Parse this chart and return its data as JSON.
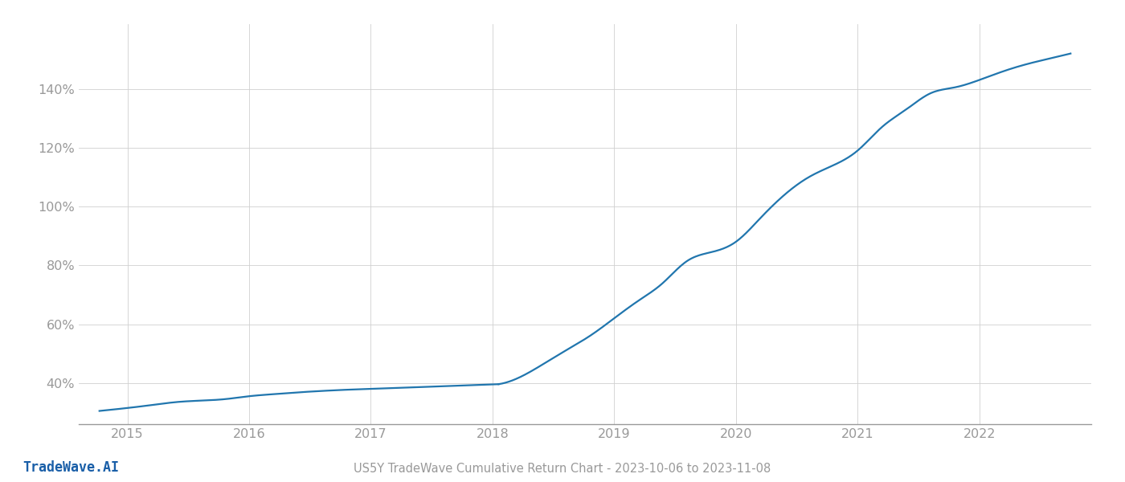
{
  "title": "US5Y TradeWave Cumulative Return Chart - 2023-10-06 to 2023-11-08",
  "watermark": "TradeWave.AI",
  "line_color": "#2176ae",
  "background_color": "#ffffff",
  "grid_color": "#d0d0d0",
  "x_years": [
    2015,
    2016,
    2017,
    2018,
    2019,
    2020,
    2021,
    2022
  ],
  "x_data": [
    2014.77,
    2015.0,
    2015.2,
    2015.4,
    2015.6,
    2015.8,
    2016.0,
    2016.2,
    2016.4,
    2016.6,
    2016.8,
    2017.0,
    2017.2,
    2017.4,
    2017.6,
    2017.8,
    2018.0,
    2018.05,
    2018.2,
    2018.4,
    2018.6,
    2018.8,
    2019.0,
    2019.2,
    2019.4,
    2019.5,
    2019.6,
    2019.8,
    2020.0,
    2020.2,
    2020.4,
    2020.6,
    2020.8,
    2021.0,
    2021.2,
    2021.4,
    2021.6,
    2021.8,
    2022.0,
    2022.2,
    2022.4,
    2022.6,
    2022.75
  ],
  "y_data": [
    30.5,
    31.5,
    32.5,
    33.5,
    34.0,
    34.5,
    35.5,
    36.2,
    36.8,
    37.3,
    37.7,
    38.0,
    38.3,
    38.6,
    38.9,
    39.2,
    39.5,
    39.6,
    41.5,
    46.0,
    51.0,
    56.0,
    62.0,
    68.0,
    74.0,
    78.0,
    81.5,
    84.5,
    88.0,
    96.0,
    104.0,
    110.0,
    114.0,
    119.0,
    127.0,
    133.0,
    138.5,
    140.5,
    143.0,
    146.0,
    148.5,
    150.5,
    152.0
  ],
  "yticks": [
    40,
    60,
    80,
    100,
    120,
    140
  ],
  "ylim": [
    26,
    162
  ],
  "xlim": [
    2014.6,
    2022.92
  ],
  "title_fontsize": 10.5,
  "tick_fontsize": 11.5,
  "watermark_fontsize": 12,
  "line_width": 1.6
}
